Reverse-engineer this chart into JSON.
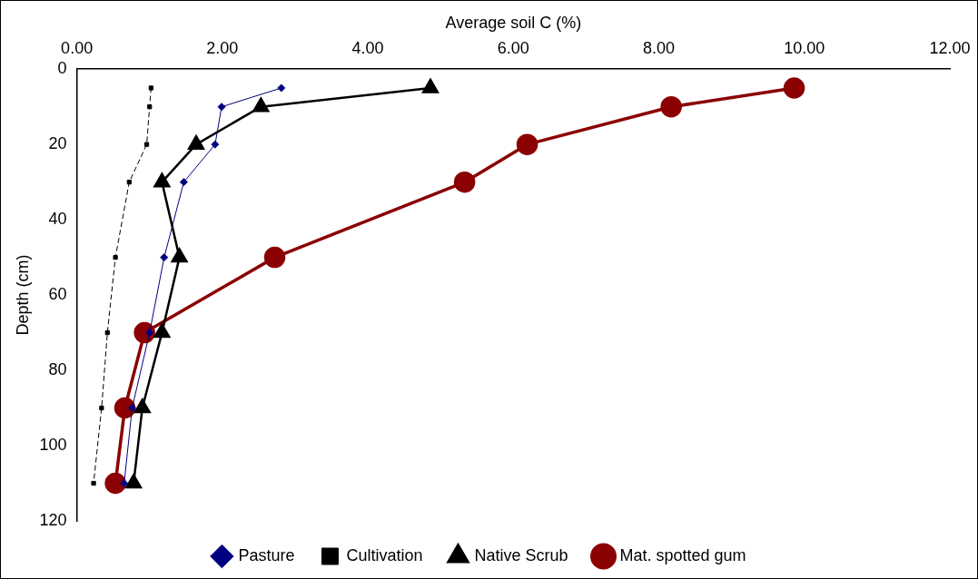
{
  "chart_data": {
    "type": "line",
    "xlabel": "Average soil C (%)",
    "ylabel": "Depth (cm)",
    "xlim": [
      0,
      12
    ],
    "xticks": [
      {
        "value": 0,
        "label": "0.00"
      },
      {
        "value": 2,
        "label": "2.00"
      },
      {
        "value": 4,
        "label": "4.00"
      },
      {
        "value": 6,
        "label": "6.00"
      },
      {
        "value": 8,
        "label": "8.00"
      },
      {
        "value": 10,
        "label": "10.00"
      },
      {
        "value": 12,
        "label": "12.00"
      }
    ],
    "ylim": [
      120,
      0
    ],
    "yticks": [
      0,
      20,
      40,
      60,
      80,
      100,
      120
    ],
    "grid": false,
    "legend": "bottom",
    "series": [
      {
        "name": "Pasture",
        "color": "#000080",
        "marker": "diamond",
        "line_style": "solid",
        "x": [
          2.81,
          1.99,
          1.9,
          1.47,
          1.2,
          1.0,
          0.76,
          0.65
        ],
        "values": [
          5,
          10,
          20,
          30,
          50,
          70,
          90,
          110
        ]
      },
      {
        "name": "Cultivation",
        "color": "#000000",
        "marker": "square",
        "line_style": "dashed",
        "x": [
          1.02,
          1.0,
          0.96,
          0.72,
          0.53,
          0.42,
          0.34,
          0.23
        ],
        "values": [
          5,
          10,
          20,
          30,
          50,
          70,
          90,
          110
        ]
      },
      {
        "name": "Native Scrub",
        "color": "#000000",
        "marker": "triangle",
        "line_style": "solid",
        "x": [
          4.86,
          2.53,
          1.64,
          1.17,
          1.41,
          1.17,
          0.9,
          0.78
        ],
        "values": [
          5,
          10,
          20,
          30,
          50,
          70,
          90,
          110
        ]
      },
      {
        "name": "Mat. spotted gum",
        "color": "#8b0000",
        "marker": "circle",
        "line_style": "solid",
        "x": [
          9.86,
          8.17,
          6.19,
          5.33,
          2.72,
          0.93,
          0.66,
          0.53
        ],
        "values": [
          5,
          10,
          20,
          30,
          50,
          70,
          90,
          110
        ]
      }
    ]
  }
}
